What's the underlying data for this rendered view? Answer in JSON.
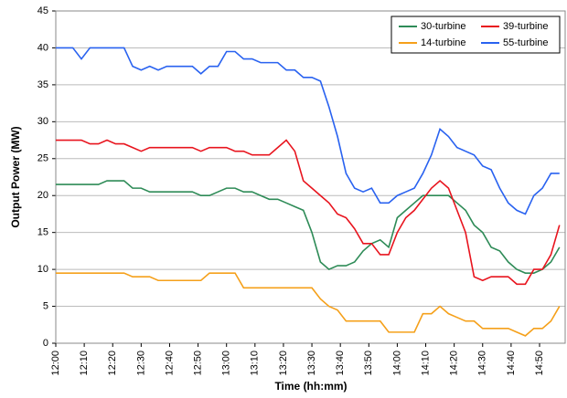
{
  "chart_data": {
    "type": "line",
    "xlabel": "Time (hh:mm)",
    "ylabel": "Output Power (MW)",
    "x": [
      "12:00",
      "12:03",
      "12:06",
      "12:09",
      "12:12",
      "12:15",
      "12:18",
      "12:21",
      "12:24",
      "12:27",
      "12:30",
      "12:33",
      "12:36",
      "12:39",
      "12:42",
      "12:45",
      "12:48",
      "12:51",
      "12:54",
      "12:57",
      "13:00",
      "13:03",
      "13:06",
      "13:09",
      "13:12",
      "13:15",
      "13:18",
      "13:21",
      "13:24",
      "13:27",
      "13:30",
      "13:33",
      "13:36",
      "13:39",
      "13:42",
      "13:45",
      "13:48",
      "13:51",
      "13:54",
      "13:57",
      "14:00",
      "14:03",
      "14:06",
      "14:09",
      "14:12",
      "14:15",
      "14:18",
      "14:21",
      "14:24",
      "14:27",
      "14:30",
      "14:33",
      "14:36",
      "14:39",
      "14:42",
      "14:45",
      "14:48",
      "14:51",
      "14:54",
      "14:57"
    ],
    "series": [
      {
        "name": "30-turbine",
        "color": "#2e8b57",
        "values": [
          21.5,
          21.5,
          21.5,
          21.5,
          21.5,
          21.5,
          22,
          22,
          22,
          21,
          21,
          20.5,
          20.5,
          20.5,
          20.5,
          20.5,
          20.5,
          20,
          20,
          20.5,
          21,
          21,
          20.5,
          20.5,
          20,
          19.5,
          19.5,
          19,
          18.5,
          18,
          15,
          11,
          10,
          10.5,
          10.5,
          11,
          12.5,
          13.5,
          14,
          13,
          17,
          18,
          19,
          20,
          20,
          20,
          20,
          19,
          18,
          16,
          15,
          13,
          12.5,
          11,
          10,
          9.5,
          9.5,
          10,
          11,
          13
        ]
      },
      {
        "name": "39-turbine",
        "color": "#e8141e",
        "values": [
          27.5,
          27.5,
          27.5,
          27.5,
          27,
          27,
          27.5,
          27,
          27,
          26.5,
          26,
          26.5,
          26.5,
          26.5,
          26.5,
          26.5,
          26.5,
          26,
          26.5,
          26.5,
          26.5,
          26,
          26,
          25.5,
          25.5,
          25.5,
          26.5,
          27.5,
          26,
          22,
          21,
          20,
          19,
          17.5,
          17,
          15.5,
          13.5,
          13.5,
          12,
          12,
          15,
          17,
          18,
          19.5,
          21,
          22,
          21,
          18,
          15,
          9,
          8.5,
          9,
          9,
          9,
          8,
          8,
          10,
          10,
          12,
          16
        ]
      },
      {
        "name": "14-turbine",
        "color": "#f5a01a",
        "values": [
          9.5,
          9.5,
          9.5,
          9.5,
          9.5,
          9.5,
          9.5,
          9.5,
          9.5,
          9,
          9,
          9,
          8.5,
          8.5,
          8.5,
          8.5,
          8.5,
          8.5,
          9.5,
          9.5,
          9.5,
          9.5,
          7.5,
          7.5,
          7.5,
          7.5,
          7.5,
          7.5,
          7.5,
          7.5,
          7.5,
          6,
          5,
          4.5,
          3,
          3,
          3,
          3,
          3,
          1.5,
          1.5,
          1.5,
          1.5,
          4,
          4,
          5,
          4,
          3.5,
          3,
          3,
          2,
          2,
          2,
          2,
          1.5,
          1,
          2,
          2,
          3,
          5
        ]
      },
      {
        "name": "55-turbine",
        "color": "#2962f0",
        "values": [
          40,
          40,
          40,
          38.5,
          40,
          40,
          40,
          40,
          40,
          37.5,
          37,
          37.5,
          37,
          37.5,
          37.5,
          37.5,
          37.5,
          36.5,
          37.5,
          37.5,
          39.5,
          39.5,
          38.5,
          38.5,
          38,
          38,
          38,
          37,
          37,
          36,
          36,
          35.5,
          32,
          28,
          23,
          21,
          20.5,
          21,
          19,
          19,
          20,
          20.5,
          21,
          23,
          25.5,
          29,
          28,
          26.5,
          26,
          25.5,
          24,
          23.5,
          21,
          19,
          18,
          17.5,
          20,
          21,
          23,
          23
        ]
      }
    ],
    "xlim": [
      "12:00",
      "14:59"
    ],
    "xticks": [
      "12:00",
      "12:10",
      "12:20",
      "12:30",
      "12:40",
      "12:50",
      "13:00",
      "13:10",
      "13:20",
      "13:30",
      "13:40",
      "13:50",
      "14:00",
      "14:10",
      "14:20",
      "14:30",
      "14:40",
      "14:50"
    ],
    "ylim": [
      0,
      45
    ],
    "yticks": [
      0,
      5,
      10,
      15,
      20,
      25,
      30,
      35,
      40,
      45
    ],
    "grid": true,
    "legend": "upper right"
  }
}
